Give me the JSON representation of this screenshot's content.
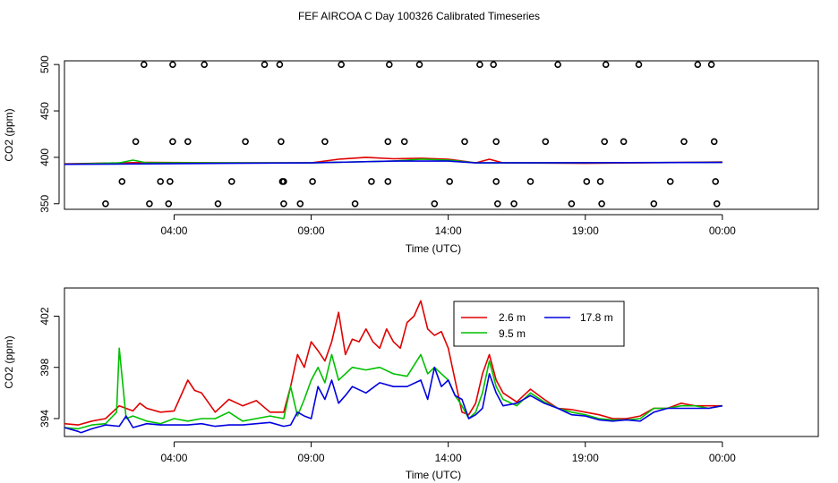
{
  "title": "FEF AIRCOA C  Day 100326  Calibrated Timeseries",
  "colors": {
    "series_2_6": "#e00000",
    "series_9_5": "#00c000",
    "series_17_8": "#0000e0",
    "markers": "#000000"
  },
  "chart_data": [
    {
      "type": "scatter",
      "xlabel": "Time (UTC)",
      "ylabel": "CO2 (ppm)",
      "xlim": [
        0,
        27.5
      ],
      "ylim": [
        344,
        504
      ],
      "x_ticks": [
        {
          "x": 4,
          "label": "04:00"
        },
        {
          "x": 9,
          "label": "09:00"
        },
        {
          "x": 14,
          "label": "14:00"
        },
        {
          "x": 19,
          "label": "19:00"
        },
        {
          "x": 24,
          "label": "00:00"
        }
      ],
      "y_ticks": [
        350,
        400,
        450,
        500
      ],
      "points": [
        [
          1.5,
          350
        ],
        [
          2.1,
          374
        ],
        [
          2.6,
          417
        ],
        [
          2.9,
          500
        ],
        [
          3.1,
          350
        ],
        [
          3.5,
          374
        ],
        [
          3.8,
          350
        ],
        [
          3.85,
          374
        ],
        [
          3.95,
          417
        ],
        [
          3.95,
          500
        ],
        [
          4.5,
          417
        ],
        [
          5.1,
          500
        ],
        [
          5.6,
          350
        ],
        [
          6.1,
          374
        ],
        [
          6.6,
          417
        ],
        [
          7.3,
          500
        ],
        [
          7.85,
          500
        ],
        [
          7.9,
          417
        ],
        [
          7.95,
          374
        ],
        [
          8.0,
          374
        ],
        [
          8.0,
          350
        ],
        [
          8.6,
          350
        ],
        [
          9.05,
          374
        ],
        [
          9.5,
          417
        ],
        [
          10.1,
          500
        ],
        [
          10.6,
          350
        ],
        [
          11.2,
          374
        ],
        [
          11.8,
          374
        ],
        [
          11.8,
          417
        ],
        [
          11.85,
          500
        ],
        [
          12.4,
          417
        ],
        [
          12.95,
          500
        ],
        [
          13.5,
          350
        ],
        [
          14.05,
          374
        ],
        [
          14.6,
          417
        ],
        [
          15.15,
          500
        ],
        [
          15.65,
          500
        ],
        [
          15.75,
          374
        ],
        [
          15.75,
          417
        ],
        [
          15.8,
          350
        ],
        [
          16.4,
          350
        ],
        [
          17.0,
          374
        ],
        [
          17.55,
          417
        ],
        [
          18.0,
          500
        ],
        [
          18.5,
          350
        ],
        [
          19.05,
          374
        ],
        [
          19.55,
          374
        ],
        [
          19.6,
          350
        ],
        [
          19.7,
          417
        ],
        [
          19.75,
          500
        ],
        [
          20.4,
          417
        ],
        [
          20.95,
          500
        ],
        [
          21.5,
          350
        ],
        [
          22.1,
          374
        ],
        [
          22.6,
          417
        ],
        [
          23.1,
          500
        ],
        [
          23.6,
          500
        ],
        [
          23.7,
          417
        ],
        [
          23.75,
          374
        ],
        [
          23.8,
          350
        ]
      ],
      "lines": [
        {
          "name": "2.6 m",
          "color_key": "series_2_6",
          "x": [
            0,
            3,
            6,
            9,
            10,
            11,
            12,
            13,
            14,
            15,
            15.5,
            16,
            19,
            24
          ],
          "y": [
            393,
            394.5,
            394,
            394,
            398,
            400,
            398.5,
            399,
            398,
            394,
            398,
            394,
            393.5,
            395
          ]
        },
        {
          "name": "9.5 m",
          "color_key": "series_9_5",
          "x": [
            0,
            2,
            2.5,
            3,
            6,
            9,
            12,
            13,
            14,
            15,
            24
          ],
          "y": [
            392.5,
            394,
            397,
            394,
            394,
            394,
            396,
            398,
            397,
            394,
            394.5
          ]
        },
        {
          "name": "17.8 m",
          "color_key": "series_17_8",
          "x": [
            0,
            3,
            6,
            9,
            12,
            14,
            15,
            24
          ],
          "y": [
            392.5,
            393,
            393.5,
            394,
            396,
            396,
            394,
            394.5
          ]
        }
      ]
    },
    {
      "type": "line",
      "xlabel": "Time (UTC)",
      "ylabel": "CO2 (ppm)",
      "xlim": [
        0,
        27.5
      ],
      "ylim": [
        392.6,
        404.2
      ],
      "x_ticks": [
        {
          "x": 4,
          "label": "04:00"
        },
        {
          "x": 9,
          "label": "09:00"
        },
        {
          "x": 14,
          "label": "14:00"
        },
        {
          "x": 19,
          "label": "19:00"
        },
        {
          "x": 24,
          "label": "00:00"
        }
      ],
      "y_ticks": [
        394,
        398,
        402
      ],
      "legend": {
        "placement": "top-center",
        "entries": [
          "2.6 m",
          "17.8 m",
          "9.5 m"
        ]
      },
      "series": [
        {
          "name": "2.6 m",
          "color_key": "series_2_6",
          "x": [
            0.0,
            0.5,
            1.0,
            1.5,
            2.0,
            2.5,
            2.75,
            3.0,
            3.5,
            4.0,
            4.5,
            4.75,
            5.0,
            5.5,
            6.0,
            6.5,
            7.0,
            7.5,
            8.0,
            8.25,
            8.5,
            8.75,
            9.0,
            9.25,
            9.5,
            9.75,
            10.0,
            10.25,
            10.5,
            10.75,
            11.0,
            11.25,
            11.5,
            11.75,
            12.0,
            12.25,
            12.5,
            12.75,
            13.0,
            13.25,
            13.5,
            13.75,
            14.0,
            14.25,
            14.5,
            14.75,
            15.0,
            15.25,
            15.5,
            15.75,
            16.0,
            16.5,
            17.0,
            17.5,
            18.0,
            18.5,
            19.0,
            19.5,
            20.0,
            20.5,
            21.0,
            21.5,
            22.0,
            22.5,
            23.0,
            23.5,
            24.0
          ],
          "y": [
            393.6,
            393.5,
            393.8,
            394.0,
            395.0,
            394.6,
            395.2,
            394.8,
            394.5,
            394.6,
            397.0,
            396.2,
            396.0,
            394.5,
            395.5,
            395.0,
            395.4,
            394.5,
            394.5,
            396.5,
            399.0,
            398.0,
            400.0,
            399.3,
            398.5,
            400.0,
            402.3,
            399.0,
            400.2,
            400.0,
            401.0,
            400.0,
            399.5,
            401.0,
            400.0,
            399.5,
            401.5,
            402.0,
            403.2,
            401.0,
            400.5,
            400.8,
            399.5,
            397.0,
            394.5,
            394.3,
            395.2,
            397.5,
            399.0,
            397.0,
            396.0,
            395.3,
            396.3,
            395.5,
            394.8,
            394.7,
            394.5,
            394.3,
            394.0,
            394.0,
            394.2,
            394.8,
            394.8,
            395.2,
            395.0,
            395.0,
            395.0
          ]
        },
        {
          "name": "9.5 m",
          "color_key": "series_9_5",
          "x": [
            0.0,
            0.5,
            1.0,
            1.5,
            1.9,
            2.0,
            2.25,
            2.5,
            3.0,
            3.5,
            4.0,
            4.5,
            5.0,
            5.5,
            6.0,
            6.5,
            7.0,
            7.5,
            8.0,
            8.25,
            8.5,
            8.75,
            9.0,
            9.25,
            9.5,
            9.75,
            10.0,
            10.5,
            11.0,
            11.5,
            12.0,
            12.5,
            13.0,
            13.25,
            13.5,
            13.75,
            14.0,
            14.25,
            14.5,
            14.75,
            15.0,
            15.25,
            15.5,
            15.75,
            16.0,
            16.5,
            17.0,
            17.5,
            18.0,
            18.5,
            19.0,
            19.5,
            20.0,
            20.5,
            21.0,
            21.5,
            22.0,
            22.5,
            23.0,
            23.5,
            24.0
          ],
          "y": [
            393.3,
            393.2,
            393.5,
            393.6,
            394.5,
            399.5,
            394.0,
            394.2,
            393.8,
            393.6,
            394.0,
            393.8,
            394.0,
            394.0,
            394.5,
            393.8,
            394.0,
            394.2,
            394.0,
            396.5,
            394.2,
            395.5,
            397.0,
            398.0,
            396.8,
            399.0,
            397.0,
            398.0,
            397.8,
            398.0,
            397.5,
            397.3,
            399.0,
            397.5,
            398.0,
            397.5,
            397.0,
            395.8,
            395.0,
            394.0,
            394.5,
            396.0,
            398.5,
            396.5,
            395.5,
            395.0,
            396.0,
            395.3,
            394.8,
            394.5,
            394.3,
            394.0,
            393.9,
            393.9,
            394.0,
            394.8,
            394.8,
            395.0,
            395.0,
            394.8,
            395.0
          ]
        },
        {
          "name": "17.8 m",
          "color_key": "series_17_8",
          "x": [
            0.0,
            0.5,
            0.6,
            1.0,
            1.5,
            2.0,
            2.25,
            2.5,
            3.0,
            3.5,
            4.0,
            4.5,
            5.0,
            5.5,
            6.0,
            6.5,
            7.0,
            7.5,
            8.0,
            8.25,
            8.5,
            8.75,
            9.0,
            9.25,
            9.5,
            9.75,
            10.0,
            10.25,
            10.5,
            11.0,
            11.5,
            12.0,
            12.5,
            13.0,
            13.25,
            13.5,
            13.75,
            14.0,
            14.25,
            14.5,
            14.75,
            15.0,
            15.25,
            15.5,
            15.75,
            16.0,
            16.5,
            17.0,
            17.5,
            18.0,
            18.5,
            19.0,
            19.5,
            20.0,
            20.5,
            21.0,
            21.5,
            22.0,
            22.5,
            23.0,
            23.5,
            24.0
          ],
          "y": [
            393.3,
            393.0,
            392.9,
            393.2,
            393.5,
            393.4,
            394.2,
            393.3,
            393.6,
            393.5,
            393.5,
            393.5,
            393.6,
            393.4,
            393.5,
            393.5,
            393.6,
            393.7,
            393.4,
            393.5,
            394.5,
            394.2,
            394.0,
            396.5,
            395.5,
            397.0,
            395.2,
            395.8,
            396.5,
            396.0,
            396.8,
            396.5,
            396.5,
            397.0,
            395.5,
            398.0,
            396.5,
            397.0,
            395.8,
            395.5,
            394.0,
            394.3,
            394.8,
            397.5,
            396.0,
            395.0,
            395.2,
            395.8,
            395.2,
            394.8,
            394.3,
            394.2,
            393.9,
            393.8,
            393.9,
            393.8,
            394.5,
            394.8,
            394.8,
            394.8,
            394.8,
            395.0
          ]
        }
      ]
    }
  ]
}
